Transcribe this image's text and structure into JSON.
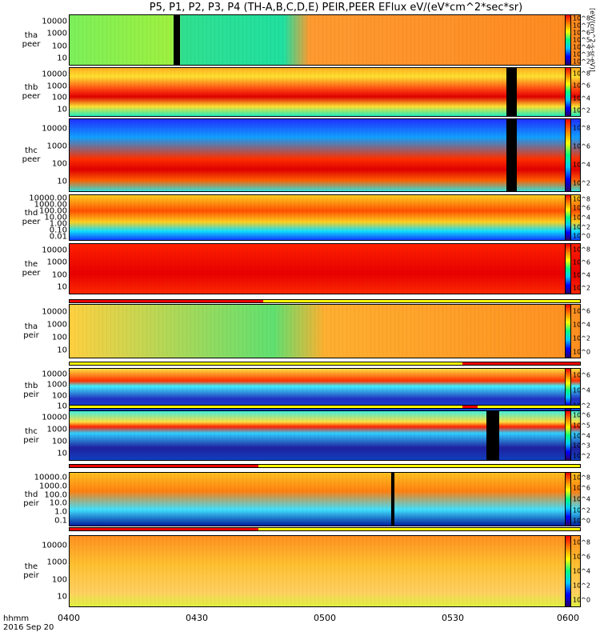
{
  "title": "P5, P1, P2, P3, P4 (TH-A,B,C,D,E) PEIR,PEER EFlux eV/(eV*cm^2*sec*sr)",
  "colorbar_unit": "[eV/(cm^2-s-sr-eV)]",
  "xaxis": {
    "label_line1": "hhmm",
    "label_line2": "2016 Sep 20",
    "ticks": [
      "0400",
      "0430",
      "0500",
      "0530",
      "0600"
    ]
  },
  "chart_data": {
    "type": "heatmap",
    "title": "P5, P1, P2, P3, P4 (TH-A,B,C,D,E) PEIR,PEER EFlux eV/(eV*cm^2*sec*sr)",
    "x_range": [
      "04:00",
      "06:00"
    ],
    "date": "2016 Sep 20",
    "y_scale": "log",
    "z_scale": "log",
    "panels": [
      {
        "probe": "tha",
        "species": "peer",
        "ylabel": [
          "tha",
          "peer"
        ],
        "yticks": [
          "10000",
          "1000",
          "100",
          "10"
        ],
        "cbticks": [
          "10^8",
          "10^7",
          "10^6",
          "10^5",
          "10^4",
          "10^3",
          "10^2"
        ]
      },
      {
        "probe": "thb",
        "species": "peer",
        "ylabel": [
          "thb",
          "peer"
        ],
        "yticks": [
          "10000",
          "1000",
          "100",
          "10"
        ],
        "cbticks": [
          "10^8",
          "10^6",
          "10^4",
          "10^2"
        ]
      },
      {
        "probe": "thc",
        "species": "peer",
        "ylabel": [
          "thc",
          "peer"
        ],
        "yticks": [
          "10000",
          "1000",
          "100",
          "10"
        ],
        "cbticks": [
          "10^8",
          "10^6",
          "10^4",
          "10^2"
        ]
      },
      {
        "probe": "thd",
        "species": "peer",
        "ylabel": [
          "thd",
          "peer"
        ],
        "yticks": [
          "10000.00",
          "1000.00",
          "100.00",
          "10.00",
          "1.00",
          "0.10",
          "0.01"
        ],
        "cbticks": [
          "10^8",
          "10^6",
          "10^4",
          "10^2",
          "10^0"
        ]
      },
      {
        "probe": "the",
        "species": "peer",
        "ylabel": [
          "the",
          "peer"
        ],
        "yticks": [
          "10000",
          "1000",
          "100",
          "10"
        ],
        "cbticks": [
          "10^8",
          "10^6",
          "10^4",
          "10^2"
        ]
      },
      {
        "probe": "tha",
        "species": "peir",
        "ylabel": [
          "tha",
          "peir"
        ],
        "yticks": [
          "10000",
          "1000",
          "100",
          "10"
        ],
        "cbticks": [
          "10^6",
          "10^4",
          "10^2",
          "10^0"
        ]
      },
      {
        "probe": "thb",
        "species": "peir",
        "ylabel": [
          "thb",
          "peir"
        ],
        "yticks": [
          "10000",
          "1000",
          "100",
          "10"
        ],
        "cbticks": [
          "10^6",
          "10^4",
          "10^2"
        ]
      },
      {
        "probe": "thc",
        "species": "peir",
        "ylabel": [
          "thc",
          "peir"
        ],
        "yticks": [
          "10000",
          "1000",
          "100",
          "10"
        ],
        "cbticks": [
          "10^6",
          "10^5",
          "10^4",
          "10^3",
          "10^2"
        ]
      },
      {
        "probe": "thd",
        "species": "peir",
        "ylabel": [
          "thd",
          "peir"
        ],
        "yticks": [
          "10000.0",
          "1000.0",
          "100.0",
          "10.0",
          "1.0",
          "0.1"
        ],
        "cbticks": [
          "10^8",
          "10^6",
          "10^4",
          "10^2",
          "10^0"
        ]
      },
      {
        "probe": "the",
        "species": "peir",
        "ylabel": [
          "the",
          "peir"
        ],
        "yticks": [
          "10000",
          "1000",
          "100",
          "10"
        ],
        "cbticks": [
          "10^8",
          "10^6",
          "10^4",
          "10^2",
          "10^0"
        ]
      }
    ]
  },
  "colors": {
    "flag_on": "#ee0000",
    "flag_off": "#ffff00"
  }
}
